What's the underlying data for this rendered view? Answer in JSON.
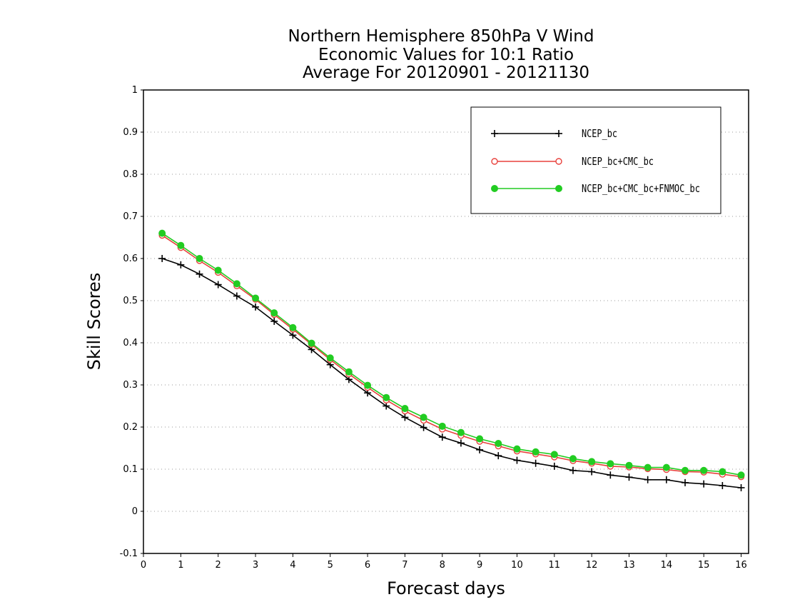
{
  "chart_data": {
    "type": "line",
    "title": [
      "Northern Hemisphere 850hPa V Wind",
      "Economic Values for 10:1 Ratio",
      "Average For 20120901 - 20121130"
    ],
    "xlabel": "Forecast days",
    "ylabel": "Skill Scores",
    "xlim": [
      0,
      16.2
    ],
    "ylim": [
      -0.1,
      1
    ],
    "xticks": [
      0,
      1,
      2,
      3,
      4,
      5,
      6,
      7,
      8,
      9,
      10,
      11,
      12,
      13,
      14,
      15,
      16
    ],
    "yticks": [
      -0.1,
      0,
      0.1,
      0.2,
      0.3,
      0.4,
      0.5,
      0.6,
      0.7,
      0.8,
      0.9,
      1
    ],
    "ytick_labels": [
      "-0.1",
      "0",
      "0.1",
      "0.2",
      "0.3",
      "0.4",
      "0.5",
      "0.6",
      "0.7",
      "0.8",
      "0.9",
      "1"
    ],
    "grid": "horizontal dotted",
    "legend_position": "top-right",
    "x": [
      0.5,
      1,
      1.5,
      2,
      2.5,
      3,
      3.5,
      4,
      4.5,
      5,
      5.5,
      6,
      6.5,
      7,
      7.5,
      8,
      8.5,
      9,
      9.5,
      10,
      10.5,
      11,
      11.5,
      12,
      12.5,
      13,
      13.5,
      14,
      14.5,
      15,
      15.5,
      16
    ],
    "series": [
      {
        "name": "NCEP_bc",
        "color": "#000000",
        "marker": "plus",
        "values": [
          0.6,
          0.585,
          0.563,
          0.538,
          0.511,
          0.485,
          0.451,
          0.418,
          0.384,
          0.348,
          0.313,
          0.281,
          0.25,
          0.223,
          0.199,
          0.176,
          0.162,
          0.146,
          0.132,
          0.121,
          0.114,
          0.107,
          0.097,
          0.094,
          0.086,
          0.081,
          0.075,
          0.075,
          0.068,
          0.065,
          0.061,
          0.056
        ]
      },
      {
        "name": "NCEP_bc+CMC_bc",
        "color": "#e8413c",
        "marker": "open-circle",
        "values": [
          0.655,
          0.626,
          0.595,
          0.567,
          0.535,
          0.503,
          0.467,
          0.432,
          0.396,
          0.36,
          0.326,
          0.294,
          0.264,
          0.238,
          0.216,
          0.195,
          0.18,
          0.166,
          0.155,
          0.143,
          0.136,
          0.129,
          0.12,
          0.114,
          0.107,
          0.105,
          0.101,
          0.099,
          0.094,
          0.093,
          0.088,
          0.082
        ]
      },
      {
        "name": "NCEP_bc+CMC_bc+FNMOC_bc",
        "color": "#22cc22",
        "marker": "filled-circle",
        "values": [
          0.66,
          0.631,
          0.6,
          0.572,
          0.54,
          0.506,
          0.471,
          0.436,
          0.399,
          0.364,
          0.331,
          0.299,
          0.27,
          0.244,
          0.223,
          0.202,
          0.187,
          0.172,
          0.161,
          0.148,
          0.141,
          0.135,
          0.125,
          0.118,
          0.113,
          0.109,
          0.104,
          0.104,
          0.097,
          0.097,
          0.094,
          0.086
        ]
      }
    ]
  }
}
